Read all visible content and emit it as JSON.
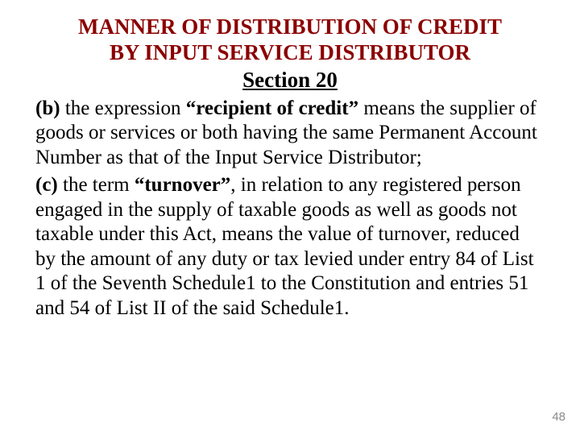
{
  "colors": {
    "title": "#8b0000",
    "body": "#000000",
    "page_num": "#8a8a8a",
    "background": "#ffffff"
  },
  "typography": {
    "family": "Times New Roman, serif",
    "title_fontsize_pt": 20,
    "body_fontsize_pt": 19,
    "pagenum_family": "Arial, sans-serif",
    "pagenum_fontsize_pt": 11
  },
  "title": {
    "line1": "MANNER OF DISTRIBUTION OF CREDIT",
    "line2": "BY INPUT SERVICE DISTRIBUTOR"
  },
  "section": "Section 20",
  "clause_b": {
    "label": "(b) ",
    "lead": "the expression ",
    "bold_phrase": "“recipient of credit”",
    "tail": " means the supplier of goods or services or both having the same Permanent Account Number as that of the Input Service Distributor;"
  },
  "clause_c": {
    "label": "(c) ",
    "lead": "the term ",
    "bold_phrase": "“turnover”",
    "tail": ", in relation to any registered person engaged in the supply of taxable goods as well as goods not taxable under this Act, means the value of turnover, reduced by the amount of any duty or tax levied under entry 84 of List 1 of the Seventh Schedule1 to the Constitution and entries 51 and 54 of List II of the said Schedule1."
  },
  "page_number": "48"
}
